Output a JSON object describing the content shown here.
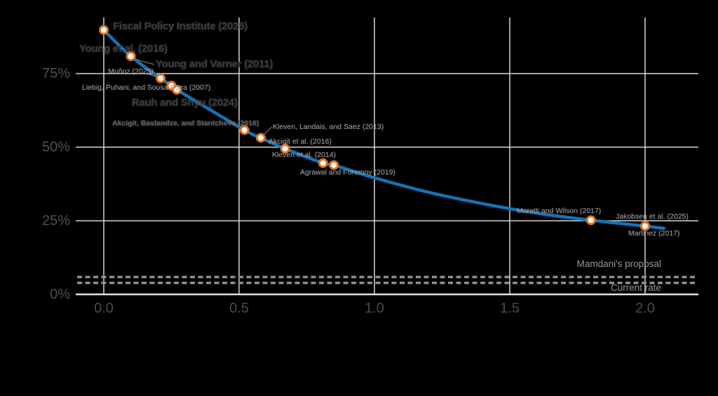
{
  "chart_data": {
    "type": "line",
    "title": "",
    "xlabel": "",
    "ylabel": "",
    "description": "Revenue-maximizing top tax rate curve declining with migration elasticity; study estimates marked as points; dashed reference lines near bottom",
    "x_axis": {
      "min": 0,
      "max": 2.15,
      "ticks": [
        0,
        0.5,
        1.0,
        1.5,
        2.0
      ],
      "tick_labels": [
        "0.0",
        "0.5",
        "1.0",
        "1.5",
        "2.0"
      ]
    },
    "y_axis": {
      "min": 0,
      "max": 94,
      "ticks": [
        0,
        25,
        50,
        75
      ],
      "tick_labels": [
        "0%",
        "25%",
        "50%",
        "75%"
      ],
      "unit": "percent"
    },
    "grid": true,
    "points": [
      {
        "label": "Fiscal Policy Institute (2025)",
        "x": 0.0,
        "y": 89.8
      },
      {
        "label": "Young et al. (2016)",
        "x": 0.1,
        "y": 80.9
      },
      {
        "label": "Young and Varner (2011)",
        "x": 0.1,
        "y": 80.9
      },
      {
        "label": "Muñoz (2025)",
        "x": 0.21,
        "y": 73.4
      },
      {
        "label": "Liebig, Puhani, and Sousa-Poza (2007)",
        "x": 0.25,
        "y": 70.9
      },
      {
        "label": "Rauh and Shyu (2024)",
        "x": 0.27,
        "y": 69.5
      },
      {
        "label": "Akcigit, Baslandze, and Stantcheva (2016)",
        "x": 0.52,
        "y": 55.8
      },
      {
        "label": "Kleven, Landais, and Saez (2013)",
        "x": 0.58,
        "y": 53.2
      },
      {
        "label": "Akcigit et al. (2016)",
        "x": 0.67,
        "y": 49.5
      },
      {
        "label": "Kleven et al. (2014)",
        "x": 0.81,
        "y": 44.6
      },
      {
        "label": "Agrawal and Foremny (2019)",
        "x": 0.85,
        "y": 43.9
      },
      {
        "label": "Moretti and Wilson (2017)",
        "x": 1.8,
        "y": 25.2
      },
      {
        "label": "Jakobsen et al. (2025)",
        "x": 2.0,
        "y": 23.2
      },
      {
        "label": "Martinez (2017)",
        "x": 2.0,
        "y": 23.2
      }
    ],
    "curve": [
      [
        0,
        89.8
      ],
      [
        0.1,
        80.9
      ],
      [
        0.21,
        73.4
      ],
      [
        0.25,
        70.9
      ],
      [
        0.27,
        69.5
      ],
      [
        0.52,
        55.8
      ],
      [
        0.58,
        53.2
      ],
      [
        0.67,
        49.5
      ],
      [
        0.81,
        44.6
      ],
      [
        0.85,
        43.9
      ],
      [
        1.0,
        39.6
      ],
      [
        1.2,
        34.7
      ],
      [
        1.4,
        30.8
      ],
      [
        1.6,
        27.6
      ],
      [
        1.8,
        25.2
      ],
      [
        2.0,
        23.2
      ],
      [
        2.07,
        22.4
      ]
    ],
    "reference_lines": [
      {
        "label": "Mamdani's proposal",
        "y": 5.9
      },
      {
        "label": "Current rate",
        "y": 3.9
      }
    ],
    "colors": {
      "line": "#1572b6",
      "marker_ring": "#e2711d",
      "marker_fill": "#ffffff",
      "grid": "#d6d6d6",
      "axis": "#e2e2e2",
      "reference_dash": "#8f8f8f",
      "leader": "#6f6f6f"
    }
  }
}
